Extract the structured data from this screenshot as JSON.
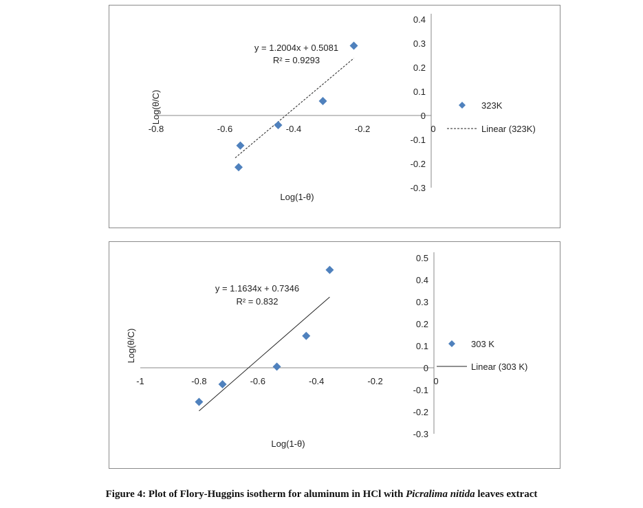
{
  "caption": {
    "prefix": "Figure 4: Plot of Flory-Huggins isotherm for aluminum in HCl with ",
    "italic": "Picralima nitida",
    "suffix": " leaves extract"
  },
  "chart_data": [
    {
      "type": "scatter",
      "xlabel": "Log(1-θ)",
      "ylabel": "Log(θ/C)",
      "xlim": [
        -0.8,
        0
      ],
      "ylim": [
        -0.3,
        0.4
      ],
      "x_ticks": [
        -0.8,
        -0.6,
        -0.4,
        -0.2,
        0
      ],
      "x_tick_labels": [
        "-0.8",
        "-0.6",
        "-0.4",
        "-0.2",
        "0"
      ],
      "y_ticks": [
        0.4,
        0.3,
        0.2,
        0.1,
        0,
        -0.1,
        -0.2,
        -0.3
      ],
      "y_tick_labels": [
        "0.4",
        "0.3",
        "0.2",
        "0.1",
        "0",
        "-0.1",
        "-0.2",
        "-0.3"
      ],
      "series": [
        {
          "name": "323K",
          "marker": "diamond",
          "color": "#4f81bd",
          "x": [
            -0.56,
            -0.555,
            -0.445,
            -0.315,
            -0.225
          ],
          "y": [
            -0.215,
            -0.125,
            -0.04,
            0.06,
            0.29
          ]
        }
      ],
      "trendline": {
        "name": "Linear (323K)",
        "style": "dashed",
        "slope": 1.2004,
        "intercept": 0.5081,
        "x_range": [
          -0.57,
          -0.225
        ]
      },
      "annotations": [
        "y = 1.2004x  + 0.5081",
        "R² = 0.9293"
      ],
      "legend": {
        "placement": "right",
        "entries": [
          "323K",
          "Linear (323K)"
        ]
      }
    },
    {
      "type": "scatter",
      "xlabel": "Log(1-θ)",
      "ylabel": "Log(θ/C)",
      "xlim": [
        -1,
        0
      ],
      "ylim": [
        -0.3,
        0.5
      ],
      "x_ticks": [
        -1,
        -0.8,
        -0.6,
        -0.4,
        -0.2,
        0
      ],
      "x_tick_labels": [
        "-1",
        "-0.8",
        "-0.6",
        "-0.4",
        "-0.2",
        "0"
      ],
      "y_ticks": [
        0.5,
        0.4,
        0.3,
        0.2,
        0.1,
        0,
        -0.1,
        -0.2,
        -0.3
      ],
      "y_tick_labels": [
        "0.5",
        "0.4",
        "0.3",
        "0.2",
        "0.1",
        "0",
        "-0.1",
        "-0.2",
        "-0.3"
      ],
      "series": [
        {
          "name": "303 K",
          "marker": "diamond",
          "color": "#4f81bd",
          "x": [
            -0.8,
            -0.72,
            -0.535,
            -0.435,
            -0.355
          ],
          "y": [
            -0.155,
            -0.075,
            0.005,
            0.145,
            0.445
          ]
        }
      ],
      "trendline": {
        "name": "Linear (303 K)",
        "style": "solid",
        "slope": 1.1634,
        "intercept": 0.7346,
        "x_range": [
          -0.8,
          -0.355
        ]
      },
      "annotations": [
        "y = 1.1634x  + 0.7346",
        "R² = 0.832"
      ],
      "legend": {
        "placement": "right",
        "entries": [
          "303 K",
          "Linear (303 K)"
        ]
      }
    }
  ]
}
